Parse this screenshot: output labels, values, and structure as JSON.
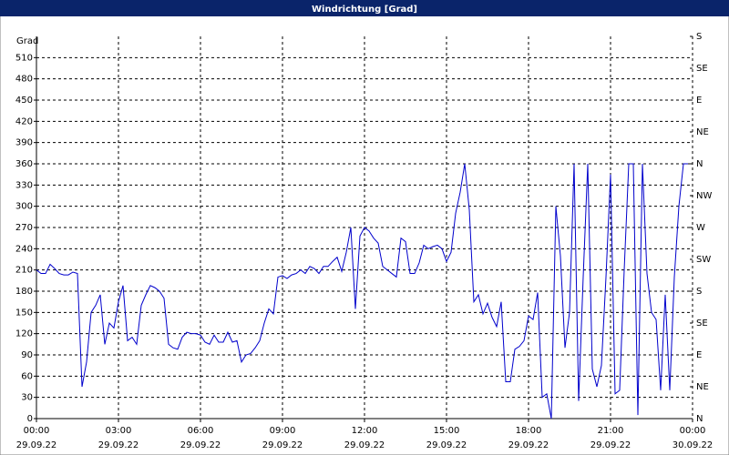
{
  "chart_data": {
    "type": "line",
    "title": "Windrichtung [Grad]",
    "y_label": "Grad",
    "x": [
      0,
      10,
      20,
      30,
      40,
      50,
      60,
      70,
      80,
      90,
      100,
      110,
      120,
      130,
      140,
      150,
      160,
      170,
      180,
      190,
      200,
      210,
      220,
      230,
      240,
      250,
      260,
      270,
      280,
      290,
      300,
      310,
      320,
      330,
      340,
      350,
      360,
      370,
      380,
      390,
      400,
      410,
      420,
      430,
      440,
      450,
      460,
      470,
      480,
      490,
      500,
      510,
      520,
      530,
      540,
      550,
      560,
      570,
      580,
      590,
      600,
      610,
      620,
      630,
      640,
      650,
      660,
      670,
      680,
      690,
      700,
      710,
      720,
      730,
      740,
      750,
      760,
      770,
      780,
      790,
      800,
      810,
      820,
      830,
      840,
      850,
      860,
      870,
      880,
      890,
      900,
      910,
      920,
      930,
      940,
      950,
      960,
      970,
      980,
      990,
      1000,
      1010,
      1020,
      1030,
      1040,
      1050,
      1060,
      1070,
      1080,
      1090,
      1100,
      1110,
      1120,
      1130,
      1140,
      1150,
      1160,
      1170,
      1180,
      1190,
      1200,
      1210,
      1220,
      1230,
      1240,
      1250,
      1260,
      1270,
      1280,
      1290,
      1300,
      1310,
      1320,
      1330,
      1340,
      1350,
      1360,
      1370,
      1380,
      1390,
      1400,
      1410,
      1420,
      1430
    ],
    "series": [
      {
        "color": "#0000cc",
        "values": [
          210,
          205,
          205,
          218,
          212,
          205,
          203,
          203,
          207,
          205,
          45,
          80,
          150,
          160,
          175,
          105,
          135,
          128,
          165,
          188,
          110,
          115,
          105,
          160,
          175,
          188,
          185,
          180,
          170,
          105,
          100,
          98,
          115,
          122,
          120,
          120,
          118,
          108,
          105,
          118,
          108,
          108,
          122,
          108,
          110,
          80,
          90,
          92,
          100,
          110,
          135,
          155,
          148,
          200,
          202,
          198,
          203,
          205,
          210,
          205,
          215,
          212,
          205,
          215,
          215,
          222,
          228,
          208,
          235,
          270,
          155,
          258,
          270,
          265,
          255,
          248,
          215,
          210,
          205,
          200,
          255,
          250,
          205,
          205,
          220,
          245,
          240,
          243,
          245,
          240,
          222,
          235,
          290,
          320,
          360,
          295,
          165,
          175,
          148,
          163,
          143,
          130,
          165,
          52,
          52,
          98,
          102,
          110,
          145,
          140,
          178,
          30,
          35,
          0,
          300,
          230,
          100,
          150,
          360,
          25,
          200,
          360,
          70,
          45,
          75,
          200,
          345,
          35,
          40,
          210,
          360,
          360,
          5,
          360,
          205,
          150,
          140,
          40,
          175,
          40,
          200,
          300,
          360,
          360
        ]
      }
    ],
    "xlim": [
      0,
      1440
    ],
    "xticks": [
      {
        "value": 0,
        "label": "00:00"
      },
      {
        "value": 180,
        "label": "03:00"
      },
      {
        "value": 360,
        "label": "06:00"
      },
      {
        "value": 540,
        "label": "09:00"
      },
      {
        "value": 720,
        "label": "12:00"
      },
      {
        "value": 900,
        "label": "15:00"
      },
      {
        "value": 1080,
        "label": "18:00"
      },
      {
        "value": 1260,
        "label": "21:00"
      },
      {
        "value": 1440,
        "label": "00:00"
      }
    ],
    "xtick_dates": [
      "29.09.22",
      "29.09.22",
      "29.09.22",
      "29.09.22",
      "29.09.22",
      "29.09.22",
      "29.09.22",
      "29.09.22",
      "30.09.22"
    ],
    "ylim": [
      0,
      540
    ],
    "yticks": [
      0,
      30,
      60,
      90,
      120,
      150,
      180,
      210,
      240,
      270,
      300,
      330,
      360,
      390,
      420,
      450,
      480,
      510
    ],
    "y2lim": [
      0,
      540
    ],
    "y2ticks": [
      {
        "value": 540,
        "label": "S"
      },
      {
        "value": 495,
        "label": "SE"
      },
      {
        "value": 450,
        "label": "E"
      },
      {
        "value": 405,
        "label": "NE"
      },
      {
        "value": 360,
        "label": "N"
      },
      {
        "value": 315,
        "label": "NW"
      },
      {
        "value": 270,
        "label": "W"
      },
      {
        "value": 225,
        "label": "SW"
      },
      {
        "value": 180,
        "label": "S"
      },
      {
        "value": 135,
        "label": "SE"
      },
      {
        "value": 90,
        "label": "E"
      },
      {
        "value": 45,
        "label": "NE"
      },
      {
        "value": 0,
        "label": "N"
      }
    ],
    "grid": true
  }
}
